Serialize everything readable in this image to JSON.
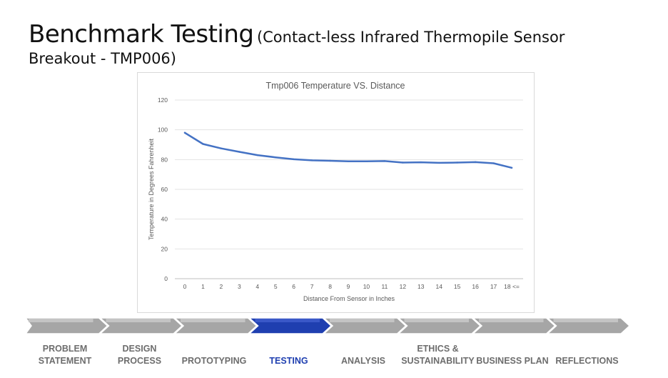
{
  "slide": {
    "title_main": "Benchmark Testing",
    "title_sub": "(Contact-less Infrared Thermopile Sensor",
    "title_line2": "Breakout - TMP006)"
  },
  "chart_data": {
    "type": "line",
    "title": "Tmp006 Temperature VS. Distance",
    "xlabel": "Distance From Sensor in Inches",
    "ylabel": "Temperature in Degrees Fahrenheit",
    "categories": [
      "0",
      "1",
      "2",
      "3",
      "4",
      "5",
      "6",
      "7",
      "8",
      "9",
      "10",
      "11",
      "12",
      "13",
      "14",
      "15",
      "16",
      "17",
      "18 <="
    ],
    "series": [
      {
        "values": [
          98,
          90.5,
          87.5,
          85.2,
          83,
          81.5,
          80.2,
          79.5,
          79.2,
          78.8,
          78.8,
          79,
          78,
          78.2,
          77.8,
          78,
          78.3,
          77.5,
          74.5
        ]
      }
    ],
    "ylim": [
      0,
      120
    ],
    "yticks": [
      0,
      20,
      40,
      60,
      80,
      100,
      120
    ],
    "grid": true,
    "line_color": "#4472c4"
  },
  "nav": {
    "items": [
      {
        "line1": "PROBLEM",
        "line2": "STATEMENT",
        "active": false
      },
      {
        "line1": "DESIGN",
        "line2": "PROCESS",
        "active": false
      },
      {
        "line1": "",
        "line2": "PROTOTYPING",
        "active": false
      },
      {
        "line1": "",
        "line2": "TESTING",
        "active": true
      },
      {
        "line1": "",
        "line2": "ANALYSIS",
        "active": false
      },
      {
        "line1": "ETHICS &",
        "line2": "SUSTAINABILITY",
        "active": false
      },
      {
        "line1": "",
        "line2": "BUSINESS PLAN",
        "active": false
      },
      {
        "line1": "",
        "line2": "REFLECTIONS",
        "active": false
      }
    ],
    "inactive_color": "#a6a6a6",
    "active_color": "#1f3fb0"
  }
}
